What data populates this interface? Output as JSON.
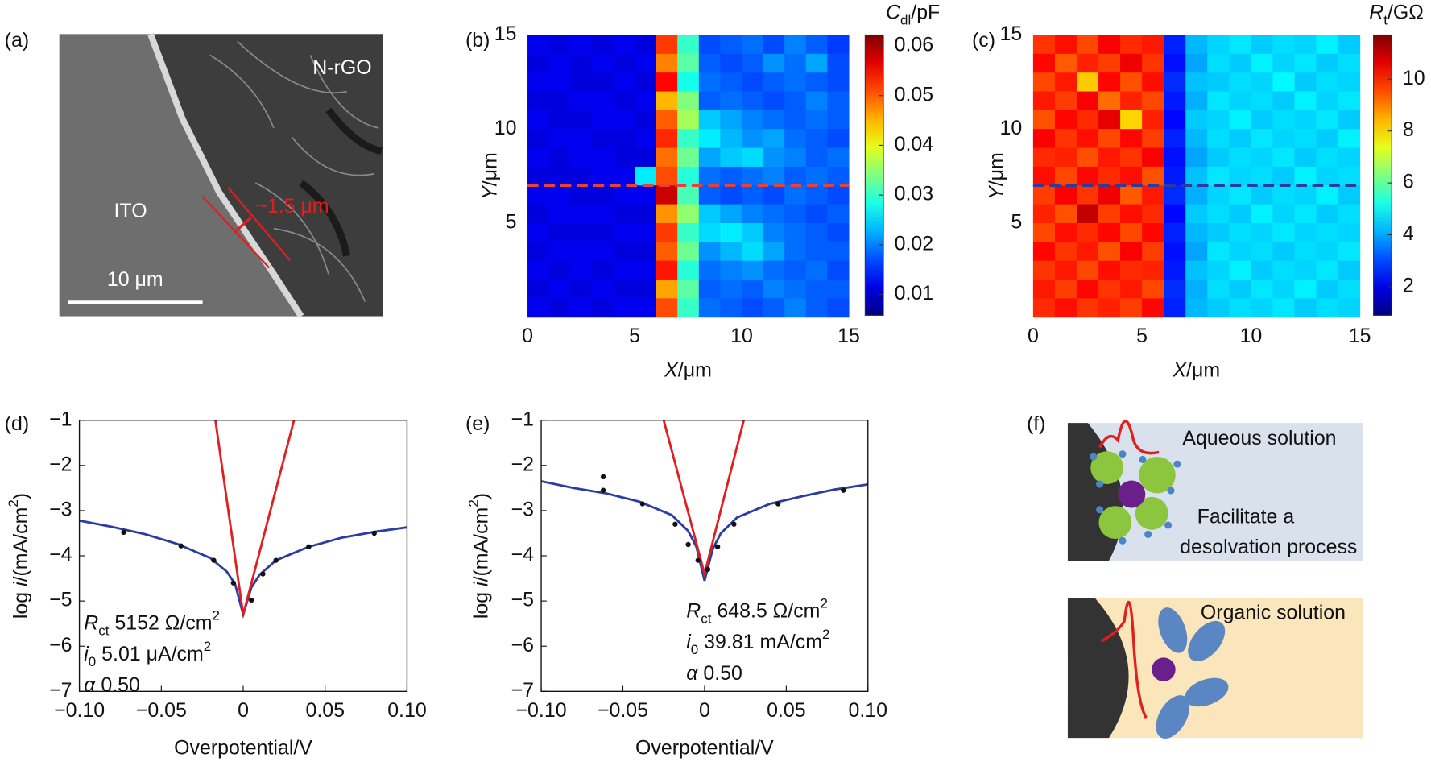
{
  "panel_a": {
    "label": "(a)",
    "material_top": "N-rGO",
    "material_bottom": "ITO",
    "width_note": "~1.5 μm",
    "scale_bar": "10 μm"
  },
  "panel_f": {
    "label": "(f)",
    "top_texts": [
      "Aqueous solution",
      "Facilitate a",
      "desolvation process"
    ],
    "bottom_text": "Organic solution"
  },
  "chart_data": [
    {
      "type": "heatmap",
      "panel_label": "(b)",
      "xlim": [
        0,
        15
      ],
      "ylim": [
        0,
        15
      ],
      "xticks": [
        0,
        5,
        10,
        15
      ],
      "yticks": [
        5,
        10,
        15
      ],
      "xlabel": [
        {
          "t": "X",
          "italic": true
        },
        {
          "t": "/μm"
        }
      ],
      "ylabel": [
        {
          "t": "Y",
          "italic": true
        },
        {
          "t": "/μm"
        }
      ],
      "colorbar": {
        "label": [
          {
            "t": "C",
            "italic": true
          },
          {
            "t": "dl",
            "shift": "sub"
          },
          {
            "t": "/pF"
          }
        ],
        "lim": [
          0.0058,
          0.0622
        ],
        "ticks": [
          0.01,
          0.02,
          0.03,
          0.04,
          0.05,
          0.06
        ],
        "colormap": "jet"
      },
      "dashed_line": {
        "y": 7,
        "color": "#e8413a"
      },
      "values": [
        [
          0.012,
          0.011,
          0.012,
          0.011,
          0.012,
          0.011,
          0.052,
          0.03,
          0.017,
          0.018,
          0.019,
          0.017,
          0.02,
          0.018,
          0.016
        ],
        [
          0.011,
          0.012,
          0.011,
          0.012,
          0.011,
          0.012,
          0.048,
          0.032,
          0.018,
          0.017,
          0.018,
          0.021,
          0.019,
          0.022,
          0.017
        ],
        [
          0.012,
          0.012,
          0.011,
          0.011,
          0.012,
          0.011,
          0.055,
          0.028,
          0.019,
          0.018,
          0.017,
          0.018,
          0.019,
          0.018,
          0.017
        ],
        [
          0.011,
          0.011,
          0.012,
          0.012,
          0.011,
          0.012,
          0.045,
          0.034,
          0.018,
          0.019,
          0.018,
          0.017,
          0.018,
          0.02,
          0.018
        ],
        [
          0.012,
          0.011,
          0.011,
          0.012,
          0.012,
          0.011,
          0.05,
          0.036,
          0.024,
          0.022,
          0.02,
          0.019,
          0.018,
          0.019,
          0.018
        ],
        [
          0.011,
          0.012,
          0.012,
          0.011,
          0.011,
          0.012,
          0.053,
          0.03,
          0.026,
          0.023,
          0.021,
          0.022,
          0.019,
          0.018,
          0.017
        ],
        [
          0.012,
          0.011,
          0.012,
          0.012,
          0.011,
          0.011,
          0.049,
          0.033,
          0.022,
          0.024,
          0.025,
          0.021,
          0.02,
          0.018,
          0.019
        ],
        [
          0.011,
          0.011,
          0.011,
          0.012,
          0.012,
          0.026,
          0.051,
          0.029,
          0.019,
          0.018,
          0.019,
          0.02,
          0.018,
          0.019,
          0.018
        ],
        [
          0.012,
          0.012,
          0.011,
          0.011,
          0.012,
          0.012,
          0.058,
          0.031,
          0.018,
          0.017,
          0.018,
          0.017,
          0.019,
          0.018,
          0.017
        ],
        [
          0.011,
          0.012,
          0.012,
          0.012,
          0.011,
          0.011,
          0.047,
          0.035,
          0.024,
          0.022,
          0.02,
          0.019,
          0.018,
          0.017,
          0.018
        ],
        [
          0.012,
          0.011,
          0.011,
          0.011,
          0.012,
          0.012,
          0.052,
          0.03,
          0.025,
          0.026,
          0.024,
          0.02,
          0.019,
          0.018,
          0.017
        ],
        [
          0.011,
          0.012,
          0.012,
          0.012,
          0.011,
          0.011,
          0.05,
          0.033,
          0.021,
          0.023,
          0.025,
          0.022,
          0.019,
          0.018,
          0.018
        ],
        [
          0.012,
          0.011,
          0.012,
          0.011,
          0.012,
          0.012,
          0.054,
          0.029,
          0.019,
          0.02,
          0.021,
          0.019,
          0.018,
          0.019,
          0.017
        ],
        [
          0.011,
          0.012,
          0.011,
          0.012,
          0.011,
          0.011,
          0.046,
          0.032,
          0.018,
          0.019,
          0.018,
          0.02,
          0.019,
          0.018,
          0.018
        ],
        [
          0.012,
          0.011,
          0.012,
          0.011,
          0.012,
          0.012,
          0.051,
          0.03,
          0.019,
          0.018,
          0.017,
          0.018,
          0.02,
          0.018,
          0.017
        ]
      ]
    },
    {
      "type": "heatmap",
      "panel_label": "(c)",
      "xlim": [
        0,
        15
      ],
      "ylim": [
        0,
        15
      ],
      "xticks": [
        0,
        5,
        10,
        15
      ],
      "yticks": [
        5,
        10,
        15
      ],
      "xlabel": [
        {
          "t": "X",
          "italic": true
        },
        {
          "t": "/μm"
        }
      ],
      "ylabel": [
        {
          "t": "Y",
          "italic": true
        },
        {
          "t": "/μm"
        }
      ],
      "colorbar": {
        "label": [
          {
            "t": "R",
            "italic": true
          },
          {
            "t": "t",
            "shift": "sub"
          },
          {
            "t": "/GΩ"
          }
        ],
        "lim": [
          0.9,
          11.7
        ],
        "ticks": [
          2,
          4,
          6,
          8,
          10
        ],
        "colormap": "jet"
      },
      "dashed_line": {
        "y": 7,
        "color": "#2b3c9e"
      },
      "values": [
        [
          9.8,
          10.2,
          9.6,
          10.4,
          9.9,
          10.1,
          2.6,
          4.2,
          4.5,
          4.7,
          4.4,
          4.6,
          4.5,
          4.8,
          4.4
        ],
        [
          10.3,
          9.4,
          10.0,
          9.7,
          10.5,
          9.8,
          2.4,
          4.0,
          4.6,
          4.4,
          4.8,
          4.5,
          4.7,
          4.4,
          4.6
        ],
        [
          9.6,
          10.1,
          8.2,
          10.3,
          9.5,
          10.2,
          2.7,
          4.3,
          4.4,
          4.6,
          4.5,
          4.9,
          4.4,
          4.6,
          4.5
        ],
        [
          10.1,
          9.7,
          10.4,
          9.2,
          10.0,
          9.6,
          2.5,
          4.1,
          4.7,
          4.5,
          4.6,
          4.4,
          4.8,
          4.5,
          4.7
        ],
        [
          9.5,
          10.3,
          9.9,
          10.6,
          8.1,
          10.0,
          2.3,
          4.4,
          4.5,
          4.8,
          4.4,
          4.6,
          4.5,
          4.7,
          4.4
        ],
        [
          10.4,
          9.8,
          10.2,
          9.6,
          10.3,
          9.7,
          2.6,
          4.2,
          4.6,
          4.4,
          4.7,
          4.5,
          4.6,
          4.4,
          4.8
        ],
        [
          9.9,
          10.0,
          9.5,
          10.1,
          9.8,
          10.4,
          2.4,
          4.0,
          4.4,
          4.6,
          4.5,
          4.7,
          4.4,
          4.6,
          4.5
        ],
        [
          10.2,
          9.6,
          10.3,
          9.9,
          10.2,
          9.5,
          2.5,
          4.3,
          4.7,
          4.5,
          4.6,
          4.4,
          4.8,
          4.5,
          4.6
        ],
        [
          9.7,
          10.4,
          9.8,
          10.5,
          9.4,
          10.1,
          2.7,
          4.1,
          4.5,
          4.7,
          4.4,
          4.6,
          4.5,
          4.8,
          4.4
        ],
        [
          10.0,
          9.5,
          11.0,
          9.7,
          10.2,
          9.9,
          2.3,
          4.4,
          4.6,
          4.4,
          4.8,
          4.5,
          4.7,
          4.4,
          4.6
        ],
        [
          9.6,
          10.2,
          9.9,
          10.3,
          9.6,
          10.3,
          2.6,
          4.2,
          4.4,
          4.6,
          4.5,
          4.7,
          4.5,
          4.6,
          4.5
        ],
        [
          10.3,
          9.8,
          10.1,
          9.5,
          10.4,
          9.7,
          2.4,
          4.0,
          4.7,
          4.5,
          4.6,
          4.4,
          4.6,
          4.5,
          4.7
        ],
        [
          9.8,
          10.1,
          9.6,
          10.2,
          9.9,
          10.0,
          2.5,
          4.3,
          4.5,
          4.8,
          4.4,
          4.6,
          4.5,
          4.7,
          4.4
        ],
        [
          10.1,
          9.7,
          10.3,
          9.8,
          10.1,
          9.6,
          2.7,
          4.1,
          4.6,
          4.4,
          4.7,
          4.5,
          4.8,
          4.4,
          4.6
        ],
        [
          9.9,
          10.2,
          9.8,
          10.0,
          9.7,
          10.3,
          2.6,
          4.2,
          4.4,
          4.6,
          4.5,
          4.7,
          4.4,
          4.6,
          4.5
        ]
      ]
    },
    {
      "type": "line",
      "panel_label": "(d)",
      "xlim": [
        -0.1,
        0.1
      ],
      "ylim": [
        -7,
        -1
      ],
      "xticks": [
        {
          "value": -0.1,
          "label": "−0.10"
        },
        {
          "value": -0.05,
          "label": "−0.05"
        },
        0,
        0.05,
        {
          "value": 0.1,
          "label": "0.10"
        }
      ],
      "yticks": [
        {
          "value": -7,
          "label": "−7"
        },
        {
          "value": -6,
          "label": "−6"
        },
        {
          "value": -5,
          "label": "−5"
        },
        {
          "value": -4,
          "label": "−4"
        },
        {
          "value": -3,
          "label": "−3"
        },
        {
          "value": -2,
          "label": "−2"
        },
        {
          "value": -1,
          "label": "−1"
        }
      ],
      "xlabel": [
        {
          "t": "Overpotential/V"
        }
      ],
      "ylabel": [
        {
          "t": "log "
        },
        {
          "t": "i",
          "italic": true
        },
        {
          "t": "/(mA/cm"
        },
        {
          "t": "2",
          "shift": "super"
        },
        {
          "t": ")"
        }
      ],
      "annotation": [
        [
          {
            "t": "R",
            "italic": true
          },
          {
            "t": "ct",
            "shift": "sub"
          },
          {
            "t": " 5152 Ω/cm"
          },
          {
            "t": "2",
            "shift": "super"
          }
        ],
        [
          {
            "t": "i",
            "italic": true
          },
          {
            "t": "0",
            "shift": "sub"
          },
          {
            "t": " 5.01 μA/cm"
          },
          {
            "t": "2",
            "shift": "super"
          }
        ],
        [
          {
            "t": "α",
            "italic": true
          },
          {
            "t": " 0.50"
          }
        ]
      ],
      "series": [
        {
          "style": "line",
          "color": "#2b3ea0",
          "x": [
            -0.1,
            -0.08,
            -0.06,
            -0.04,
            -0.02,
            -0.01,
            -0.005,
            0,
            0.005,
            0.01,
            0.02,
            0.04,
            0.06,
            0.08,
            0.1
          ],
          "values": [
            -3.22,
            -3.36,
            -3.52,
            -3.74,
            -4.05,
            -4.35,
            -4.62,
            -5.3,
            -4.7,
            -4.42,
            -4.1,
            -3.8,
            -3.6,
            -3.47,
            -3.37
          ]
        },
        {
          "style": "line",
          "color": "#e02020",
          "x": [
            -0.017,
            0,
            0.031
          ],
          "values": [
            -1,
            -5.3,
            -1
          ]
        },
        {
          "style": "points",
          "color": "#111111",
          "x": [
            -0.073,
            -0.038,
            -0.018,
            -0.006,
            0.005,
            0.012,
            0.02,
            0.04,
            0.08
          ],
          "values": [
            -3.48,
            -3.78,
            -4.1,
            -4.6,
            -4.98,
            -4.4,
            -4.1,
            -3.8,
            -3.5
          ]
        }
      ]
    },
    {
      "type": "line",
      "panel_label": "(e)",
      "xlim": [
        -0.1,
        0.1
      ],
      "ylim": [
        -7,
        -1
      ],
      "xticks": [
        {
          "value": -0.1,
          "label": "−0.10"
        },
        {
          "value": -0.05,
          "label": "−0.05"
        },
        0,
        0.05,
        {
          "value": 0.1,
          "label": "0.10"
        }
      ],
      "yticks": [
        {
          "value": -7,
          "label": "−7"
        },
        {
          "value": -6,
          "label": "−6"
        },
        {
          "value": -5,
          "label": "−5"
        },
        {
          "value": -4,
          "label": "−4"
        },
        {
          "value": -3,
          "label": "−3"
        },
        {
          "value": -2,
          "label": "−2"
        },
        {
          "value": -1,
          "label": "−1"
        }
      ],
      "xlabel": [
        {
          "t": "Overpotential/V"
        }
      ],
      "ylabel": [
        {
          "t": "log "
        },
        {
          "t": "i",
          "italic": true
        },
        {
          "t": "/(mA/cm"
        },
        {
          "t": "2",
          "shift": "super"
        },
        {
          "t": ")"
        }
      ],
      "annotation": [
        [
          {
            "t": "R",
            "italic": true
          },
          {
            "t": "ct",
            "shift": "sub"
          },
          {
            "t": " 648.5 Ω/cm"
          },
          {
            "t": "2",
            "shift": "super"
          }
        ],
        [
          {
            "t": "i",
            "italic": true
          },
          {
            "t": "0",
            "shift": "sub"
          },
          {
            "t": " 39.81 mA/cm"
          },
          {
            "t": "2",
            "shift": "super"
          }
        ],
        [
          {
            "t": "α",
            "italic": true
          },
          {
            "t": " 0.50"
          }
        ]
      ],
      "series": [
        {
          "style": "line",
          "color": "#2b3ea0",
          "x": [
            -0.1,
            -0.08,
            -0.06,
            -0.04,
            -0.02,
            -0.01,
            -0.005,
            0,
            0.005,
            0.01,
            0.02,
            0.04,
            0.06,
            0.08,
            0.1
          ],
          "values": [
            -2.35,
            -2.5,
            -2.62,
            -2.8,
            -3.1,
            -3.45,
            -3.8,
            -4.55,
            -3.85,
            -3.5,
            -3.15,
            -2.85,
            -2.68,
            -2.53,
            -2.42
          ]
        },
        {
          "style": "line",
          "color": "#e02020",
          "x": [
            -0.025,
            0,
            0.024
          ],
          "values": [
            -1,
            -4.4,
            -1
          ]
        },
        {
          "style": "points",
          "color": "#111111",
          "x": [
            -0.062,
            -0.062,
            -0.038,
            -0.018,
            -0.01,
            -0.004,
            0.002,
            0.008,
            0.018,
            0.045,
            0.085
          ],
          "values": [
            -2.25,
            -2.55,
            -2.85,
            -3.3,
            -3.75,
            -4.1,
            -4.3,
            -3.8,
            -3.3,
            -2.85,
            -2.55
          ]
        }
      ]
    }
  ]
}
